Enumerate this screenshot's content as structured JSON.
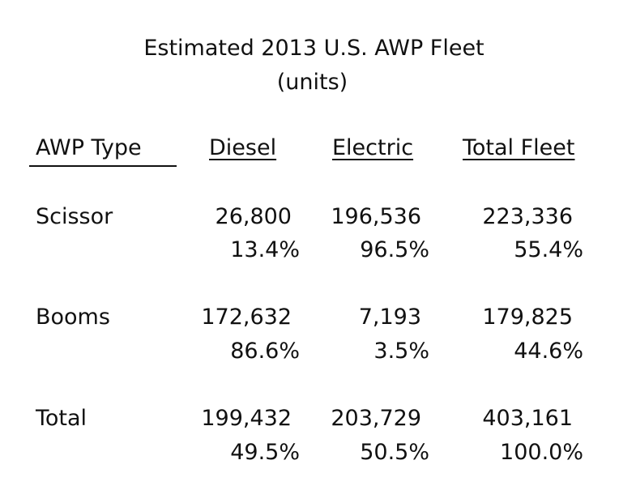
{
  "title": {
    "line1": "Estimated 2013 U.S. AWP Fleet",
    "line2": "(units)"
  },
  "headers": {
    "type": "AWP Type",
    "diesel": "Diesel",
    "electric": "Electric",
    "total": "Total Fleet"
  },
  "rows": [
    {
      "label": "Scissor",
      "diesel": "26,800",
      "diesel_pct": "13.4%",
      "electric": "196,536",
      "electric_pct": "96.5%",
      "total": "223,336",
      "total_pct": "55.4%"
    },
    {
      "label": "Booms",
      "diesel": "172,632",
      "diesel_pct": "86.6%",
      "electric": "7,193",
      "electric_pct": "3.5%",
      "total": "179,825",
      "total_pct": "44.6%"
    },
    {
      "label": "Total",
      "diesel": "199,432",
      "diesel_pct": "49.5%",
      "electric": "203,729",
      "electric_pct": "50.5%",
      "total": "403,161",
      "total_pct": "100.0%"
    }
  ]
}
